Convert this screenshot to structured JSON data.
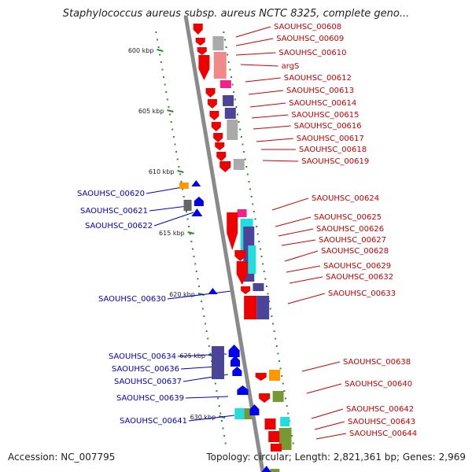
{
  "title": "Staphylococcus aureus subsp. aureus NCTC 8325, complete geno...",
  "footer": {
    "accession": "Accession: NC_007795",
    "topology": "Topology: circular; Length: 2,821,361 bp; Genes: 2,969"
  },
  "colors": {
    "backbone": "#8a8a8a",
    "forward_label": "#cc0000",
    "reverse_label": "#0000cc",
    "tick_dot": "#2e8b2e",
    "red": "#ee0000",
    "pink": "#f08a8a",
    "magenta": "#ee2288",
    "gray": "#aaaaaa",
    "purple": "#4b4499",
    "cyan": "#22dddd",
    "orange": "#ff9900",
    "blue": "#0000ee",
    "darkgray": "#666666",
    "olive": "#779933"
  },
  "ticks": [
    {
      "label": "600 kbp",
      "kbp": 600
    },
    {
      "label": "605 kbp",
      "kbp": 605
    },
    {
      "label": "610 kbp",
      "kbp": 610
    },
    {
      "label": "615 kbp",
      "kbp": 615
    },
    {
      "label": "620 kbp",
      "kbp": 620
    },
    {
      "label": "625 kbp",
      "kbp": 625
    },
    {
      "label": "630 kbp",
      "kbp": 630
    }
  ],
  "forward_genes": [
    "SAOUHSC_00608",
    "SAOUHSC_00609",
    "SAOUHSC_00610",
    "argS",
    "SAOUHSC_00612",
    "SAOUHSC_00613",
    "SAOUHSC_00614",
    "SAOUHSC_00615",
    "SAOUHSC_00616",
    "SAOUHSC_00617",
    "SAOUHSC_00618",
    "SAOUHSC_00619",
    "SAOUHSC_00624",
    "SAOUHSC_00625",
    "SAOUHSC_00626",
    "SAOUHSC_00627",
    "SAOUHSC_00628",
    "SAOUHSC_00629",
    "SAOUHSC_00632",
    "SAOUHSC_00633",
    "SAOUHSC_00638",
    "SAOUHSC_00640",
    "SAOUHSC_00642",
    "SAOUHSC_00643",
    "SAOUHSC_00644"
  ],
  "reverse_genes": [
    "SAOUHSC_00620",
    "SAOUHSC_00621",
    "SAOUHSC_00622",
    "SAOUHSC_00630",
    "SAOUHSC_00634",
    "SAOUHSC_00636",
    "SAOUHSC_00637",
    "SAOUHSC_00639",
    "SAOUHSC_00641"
  ]
}
